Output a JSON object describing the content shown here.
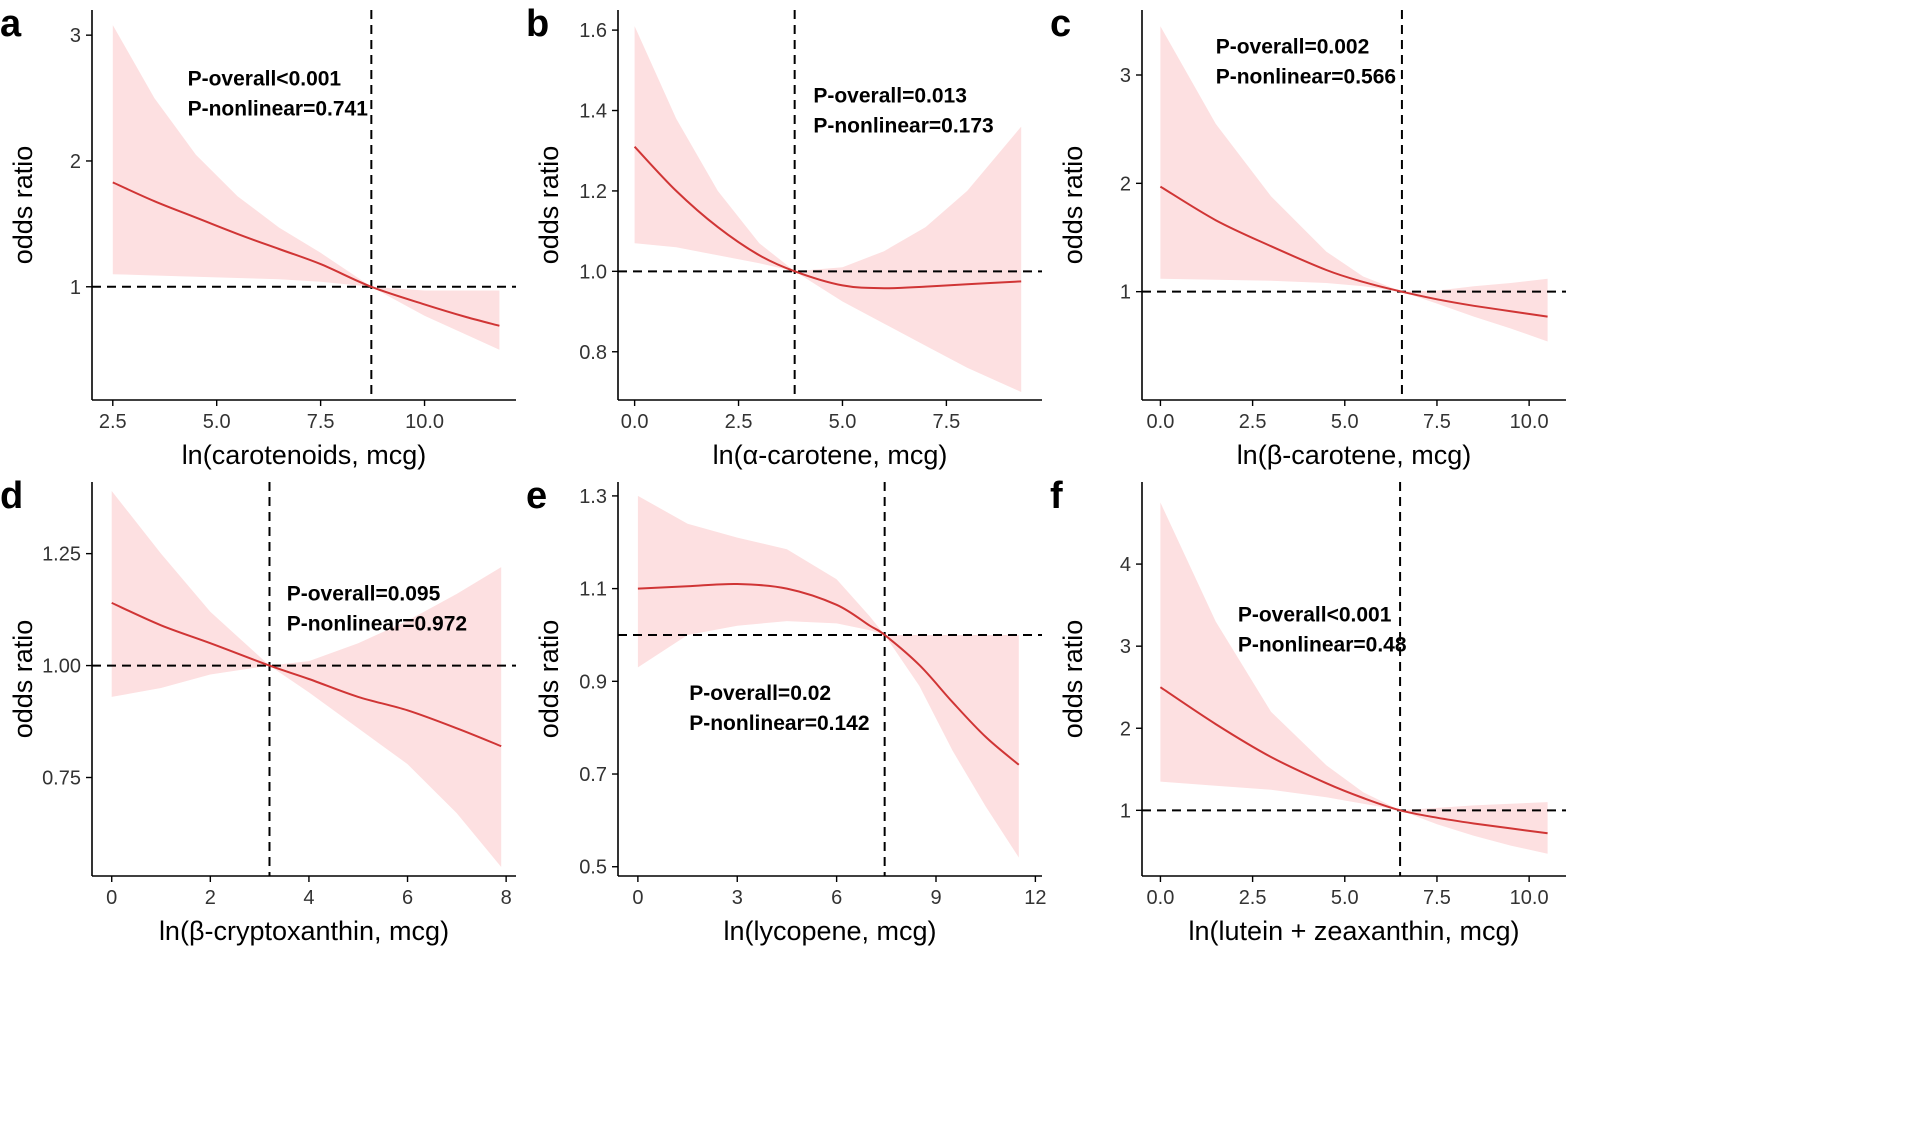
{
  "figure": {
    "panels": [
      {
        "letter": "a",
        "ylabel": "odds ratio",
        "xlabel": "ln(carotenoids, mcg)",
        "annotation": {
          "p_overall": "P-overall<0.001",
          "p_nonlinear": "P-nonlinear=0.741"
        }
      },
      {
        "letter": "b",
        "ylabel": "odds ratio",
        "xlabel": "ln(α-carotene, mcg)",
        "annotation": {
          "p_overall": "P-overall=0.013",
          "p_nonlinear": "P-nonlinear=0.173"
        }
      },
      {
        "letter": "c",
        "ylabel": "odds ratio",
        "xlabel": "ln(β-carotene, mcg)",
        "annotation": {
          "p_overall": "P-overall=0.002",
          "p_nonlinear": "P-nonlinear=0.566"
        }
      },
      {
        "letter": "d",
        "ylabel": "odds ratio",
        "xlabel": "ln(β-cryptoxanthin, mcg)",
        "annotation": {
          "p_overall": "P-overall=0.095",
          "p_nonlinear": "P-nonlinear=0.972"
        }
      },
      {
        "letter": "e",
        "ylabel": "odds ratio",
        "xlabel": "ln(lycopene, mcg)",
        "annotation": {
          "p_overall": "P-overall=0.02",
          "p_nonlinear": "P-nonlinear=0.142"
        }
      },
      {
        "letter": "f",
        "ylabel": "odds ratio",
        "xlabel": "ln(lutein + zeaxanthin, mcg)",
        "annotation": {
          "p_overall": "P-overall<0.001",
          "p_nonlinear": "P-nonlinear=0.48"
        }
      }
    ]
  },
  "colors": {
    "line": "#d03535",
    "band": "#fde0e1",
    "axis": "#000000",
    "reference": "#000000"
  },
  "chart_data": [
    {
      "type": "line",
      "panel": "a",
      "title": "",
      "xlabel": "ln(carotenoids, mcg)",
      "ylabel": "odds ratio",
      "xlim": [
        2.0,
        12.2
      ],
      "ylim": [
        0.1,
        3.2
      ],
      "x_ticks": [
        2.5,
        5.0,
        7.5,
        10.0
      ],
      "x_tick_labels": [
        "2.5",
        "5.0",
        "7.5",
        "10.0"
      ],
      "y_ticks": [
        1,
        2,
        3
      ],
      "y_tick_labels": [
        "1",
        "2",
        "3"
      ],
      "reference_x": 8.72,
      "reference_y": 1.0,
      "x": [
        2.5,
        3.5,
        4.5,
        5.5,
        6.5,
        7.5,
        8.72,
        10.0,
        11.0,
        11.8
      ],
      "y": [
        1.83,
        1.68,
        1.55,
        1.42,
        1.3,
        1.18,
        1.0,
        0.86,
        0.76,
        0.69
      ],
      "lower": [
        1.1,
        1.09,
        1.08,
        1.07,
        1.06,
        1.04,
        1.0,
        0.77,
        0.62,
        0.5
      ],
      "upper": [
        3.08,
        2.5,
        2.05,
        1.72,
        1.47,
        1.27,
        1.0,
        0.97,
        0.97,
        0.97
      ],
      "annotation_anchor": {
        "x": 4.3,
        "y": 2.6
      }
    },
    {
      "type": "line",
      "panel": "b",
      "title": "",
      "xlabel": "ln(α-carotene, mcg)",
      "ylabel": "odds ratio",
      "xlim": [
        -0.4,
        9.8
      ],
      "ylim": [
        0.68,
        1.65
      ],
      "x_ticks": [
        0.0,
        2.5,
        5.0,
        7.5
      ],
      "x_tick_labels": [
        "0.0",
        "2.5",
        "5.0",
        "7.5"
      ],
      "y_ticks": [
        0.8,
        1.0,
        1.2,
        1.4,
        1.6
      ],
      "y_tick_labels": [
        "0.8",
        "1.0",
        "1.2",
        "1.4",
        "1.6"
      ],
      "reference_x": 3.85,
      "reference_y": 1.0,
      "x": [
        0.0,
        1.0,
        2.0,
        3.0,
        3.85,
        5.0,
        6.0,
        7.0,
        8.0,
        9.3
      ],
      "y": [
        1.31,
        1.2,
        1.11,
        1.04,
        1.0,
        0.965,
        0.958,
        0.962,
        0.968,
        0.975
      ],
      "lower": [
        1.07,
        1.06,
        1.04,
        1.02,
        1.0,
        0.925,
        0.87,
        0.815,
        0.76,
        0.7
      ],
      "upper": [
        1.61,
        1.38,
        1.2,
        1.07,
        1.0,
        1.01,
        1.05,
        1.11,
        1.2,
        1.36
      ],
      "annotation_anchor": {
        "x": 4.3,
        "y": 1.42
      }
    },
    {
      "type": "line",
      "panel": "c",
      "title": "",
      "xlabel": "ln(β-carotene, mcg)",
      "ylabel": "odds ratio",
      "xlim": [
        -0.5,
        11.0
      ],
      "ylim": [
        0.0,
        3.6
      ],
      "x_ticks": [
        0.0,
        2.5,
        5.0,
        7.5,
        10.0
      ],
      "x_tick_labels": [
        "0.0",
        "2.5",
        "5.0",
        "7.5",
        "10.0"
      ],
      "y_ticks": [
        1,
        2,
        3
      ],
      "y_tick_labels": [
        "1",
        "2",
        "3"
      ],
      "reference_x": 6.55,
      "reference_y": 1.0,
      "x": [
        0.0,
        1.5,
        3.0,
        4.5,
        5.5,
        6.55,
        7.5,
        8.5,
        9.5,
        10.5
      ],
      "y": [
        1.97,
        1.66,
        1.42,
        1.2,
        1.09,
        1.0,
        0.93,
        0.87,
        0.82,
        0.77
      ],
      "lower": [
        1.12,
        1.11,
        1.1,
        1.08,
        1.05,
        1.0,
        0.89,
        0.77,
        0.66,
        0.54
      ],
      "upper": [
        3.45,
        2.55,
        1.88,
        1.37,
        1.14,
        1.0,
        1.01,
        1.05,
        1.08,
        1.12
      ],
      "annotation_anchor": {
        "x": 1.5,
        "y": 3.2
      }
    },
    {
      "type": "line",
      "panel": "d",
      "title": "",
      "xlabel": "ln(β-cryptoxanthin, mcg)",
      "ylabel": "odds ratio",
      "xlim": [
        -0.4,
        8.2
      ],
      "ylim": [
        0.53,
        1.41
      ],
      "x_ticks": [
        0,
        2,
        4,
        6,
        8
      ],
      "x_tick_labels": [
        "0",
        "2",
        "4",
        "6",
        "8"
      ],
      "y_ticks": [
        0.75,
        1.0,
        1.25
      ],
      "y_tick_labels": [
        "0.75",
        "1.00",
        "1.25"
      ],
      "reference_x": 3.2,
      "reference_y": 1.0,
      "x": [
        0.0,
        1.0,
        2.0,
        3.2,
        4.0,
        5.0,
        6.0,
        7.0,
        7.9
      ],
      "y": [
        1.14,
        1.09,
        1.05,
        1.0,
        0.97,
        0.93,
        0.9,
        0.86,
        0.82
      ],
      "lower": [
        0.93,
        0.95,
        0.98,
        1.0,
        0.94,
        0.86,
        0.78,
        0.67,
        0.55
      ],
      "upper": [
        1.39,
        1.25,
        1.12,
        1.0,
        1.01,
        1.05,
        1.1,
        1.16,
        1.22
      ],
      "annotation_anchor": {
        "x": 3.55,
        "y": 1.145
      }
    },
    {
      "type": "line",
      "panel": "e",
      "title": "",
      "xlabel": "ln(lycopene, mcg)",
      "ylabel": "odds ratio",
      "xlim": [
        -0.6,
        12.2
      ],
      "ylim": [
        0.48,
        1.33
      ],
      "x_ticks": [
        0,
        3,
        6,
        9,
        12
      ],
      "x_tick_labels": [
        "0",
        "3",
        "6",
        "9",
        "12"
      ],
      "y_ticks": [
        0.5,
        0.7,
        0.9,
        1.1,
        1.3
      ],
      "y_tick_labels": [
        "0.5",
        "0.7",
        "0.9",
        "1.1",
        "1.3"
      ],
      "reference_x": 7.45,
      "reference_y": 1.0,
      "x": [
        0.0,
        1.5,
        3.0,
        4.5,
        6.0,
        7.0,
        7.45,
        8.5,
        9.5,
        10.5,
        11.5
      ],
      "y": [
        1.1,
        1.105,
        1.11,
        1.1,
        1.065,
        1.02,
        1.0,
        0.935,
        0.855,
        0.78,
        0.72
      ],
      "lower": [
        0.93,
        1.0,
        1.02,
        1.03,
        1.025,
        1.01,
        1.0,
        0.89,
        0.75,
        0.63,
        0.52
      ],
      "upper": [
        1.3,
        1.24,
        1.21,
        1.185,
        1.12,
        1.04,
        1.0,
        1.0,
        1.0,
        1.0,
        1.0
      ],
      "annotation_anchor": {
        "x": 1.55,
        "y": 0.86
      }
    },
    {
      "type": "line",
      "panel": "f",
      "title": "",
      "xlabel": "ln(lutein + zeaxanthin, mcg)",
      "ylabel": "odds ratio",
      "xlim": [
        -0.5,
        11.0
      ],
      "ylim": [
        0.2,
        5.0
      ],
      "x_ticks": [
        0.0,
        2.5,
        5.0,
        7.5,
        10.0
      ],
      "x_tick_labels": [
        "0.0",
        "2.5",
        "5.0",
        "7.5",
        "10.0"
      ],
      "y_ticks": [
        1,
        2,
        3,
        4
      ],
      "y_tick_labels": [
        "1",
        "2",
        "3",
        "4"
      ],
      "reference_x": 6.5,
      "reference_y": 1.0,
      "x": [
        0.0,
        1.5,
        3.0,
        4.5,
        5.5,
        6.5,
        7.5,
        8.5,
        9.5,
        10.5
      ],
      "y": [
        2.5,
        2.05,
        1.65,
        1.33,
        1.15,
        1.0,
        0.91,
        0.84,
        0.78,
        0.72
      ],
      "lower": [
        1.35,
        1.3,
        1.25,
        1.16,
        1.08,
        1.0,
        0.83,
        0.69,
        0.57,
        0.47
      ],
      "upper": [
        4.75,
        3.3,
        2.2,
        1.55,
        1.22,
        1.0,
        1.03,
        1.06,
        1.08,
        1.1
      ],
      "annotation_anchor": {
        "x": 2.1,
        "y": 3.3
      }
    }
  ]
}
